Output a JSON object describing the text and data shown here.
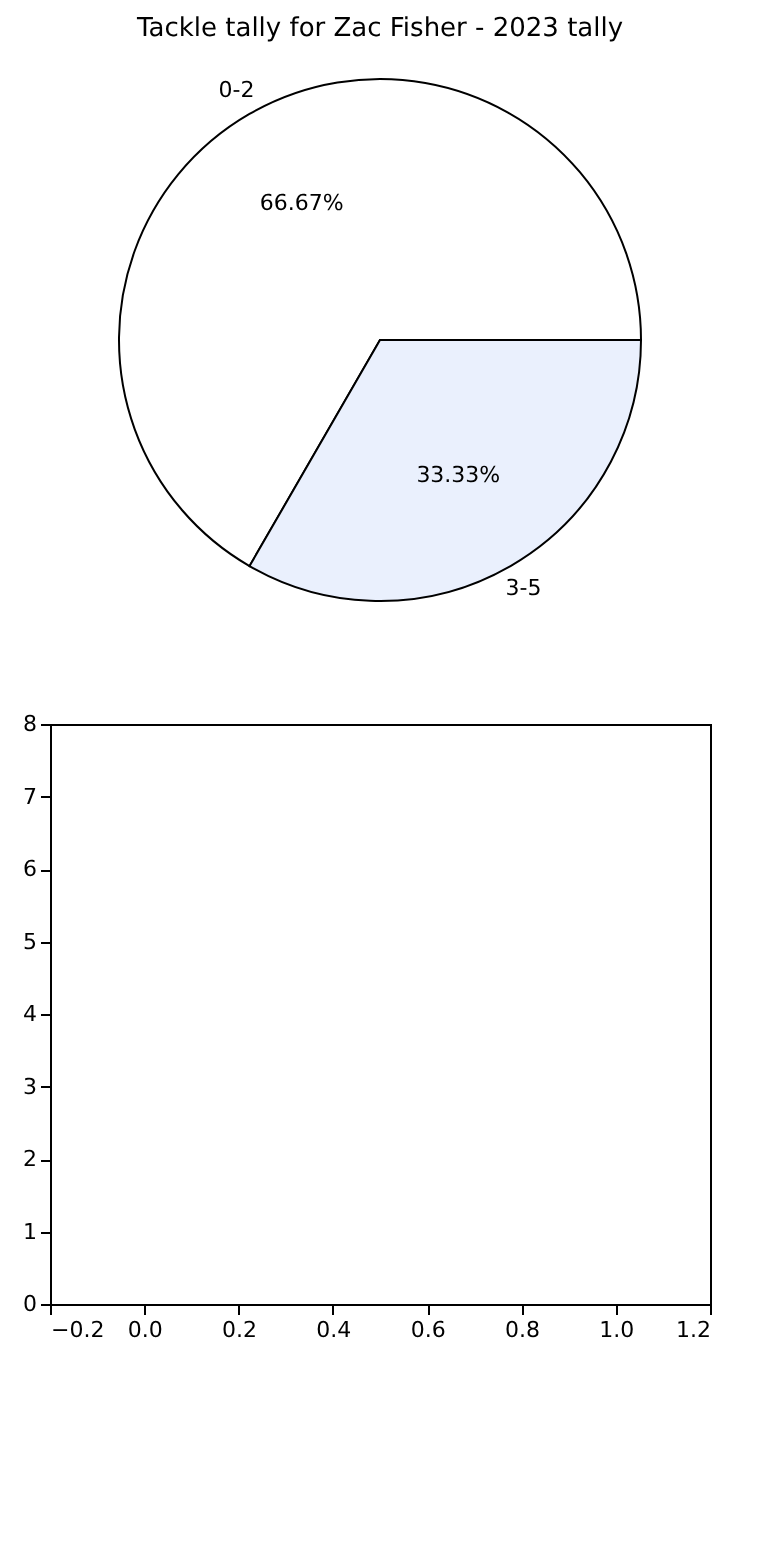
{
  "chart_data": [
    {
      "type": "pie",
      "title": "Tackle tally for Zac Fisher - 2023 tally",
      "categories": [
        "0-2",
        "3-5"
      ],
      "values": [
        66.67,
        33.33
      ],
      "colors": [
        "#ffffff",
        "#eaf0fd"
      ],
      "value_labels": [
        "66.67%",
        "33.33%"
      ]
    },
    {
      "type": "scatter",
      "xlim": [
        -0.2,
        1.2
      ],
      "xticks": [
        {
          "value": -0.2,
          "label": "−0.2"
        },
        {
          "value": 0,
          "label": "0.0"
        },
        {
          "value": 0.2,
          "label": "0.2"
        },
        {
          "value": 0.4,
          "label": "0.4"
        },
        {
          "value": 0.6,
          "label": "0.6"
        },
        {
          "value": 0.8,
          "label": "0.8"
        },
        {
          "value": 1,
          "label": "1.0"
        },
        {
          "value": 1.2,
          "label": "1.2"
        }
      ],
      "ylim": [
        0,
        8
      ],
      "yticks": [
        0,
        1,
        2,
        3,
        4,
        5,
        6,
        7,
        8
      ]
    }
  ]
}
